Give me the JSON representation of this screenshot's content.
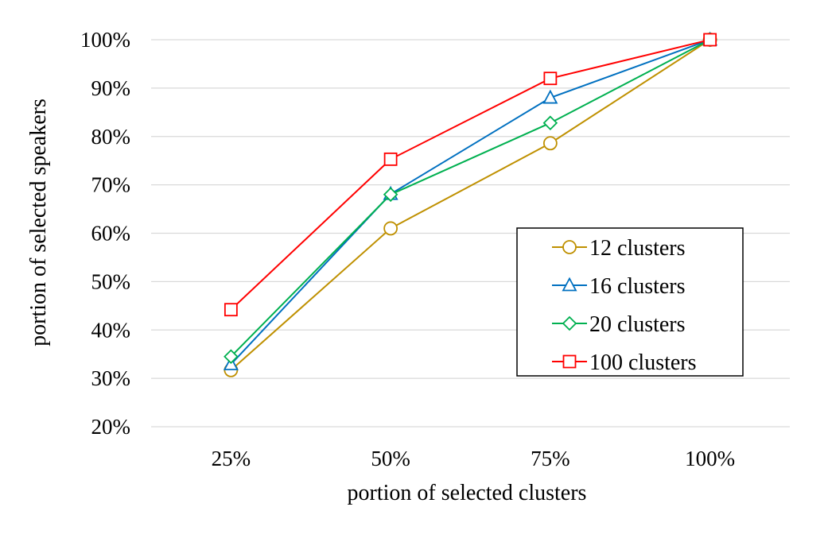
{
  "chart_data": {
    "type": "line",
    "title": "",
    "xlabel": "portion of selected clusters",
    "ylabel": "portion of selected speakers",
    "categories": [
      "25%",
      "50%",
      "75%",
      "100%"
    ],
    "ylim": [
      20,
      100
    ],
    "yticks": [
      20,
      30,
      40,
      50,
      60,
      70,
      80,
      90,
      100
    ],
    "ytick_labels": [
      "20%",
      "30%",
      "40%",
      "50%",
      "60%",
      "70%",
      "80%",
      "90%",
      "100%"
    ],
    "grid": true,
    "legend_position": "right",
    "series": [
      {
        "name": "12 clusters",
        "values": [
          31.7,
          61.0,
          78.6,
          100.0
        ],
        "color": "#bf9000",
        "marker": "circle"
      },
      {
        "name": "16 clusters",
        "values": [
          32.9,
          68.1,
          88.0,
          100.0
        ],
        "color": "#0070c0",
        "marker": "triangle"
      },
      {
        "name": "20 clusters",
        "values": [
          34.5,
          68.0,
          82.8,
          100.0
        ],
        "color": "#00b050",
        "marker": "diamond"
      },
      {
        "name": "100 clusters",
        "values": [
          44.2,
          75.3,
          92.0,
          100.0
        ],
        "color": "#ff0000",
        "marker": "square"
      }
    ]
  }
}
